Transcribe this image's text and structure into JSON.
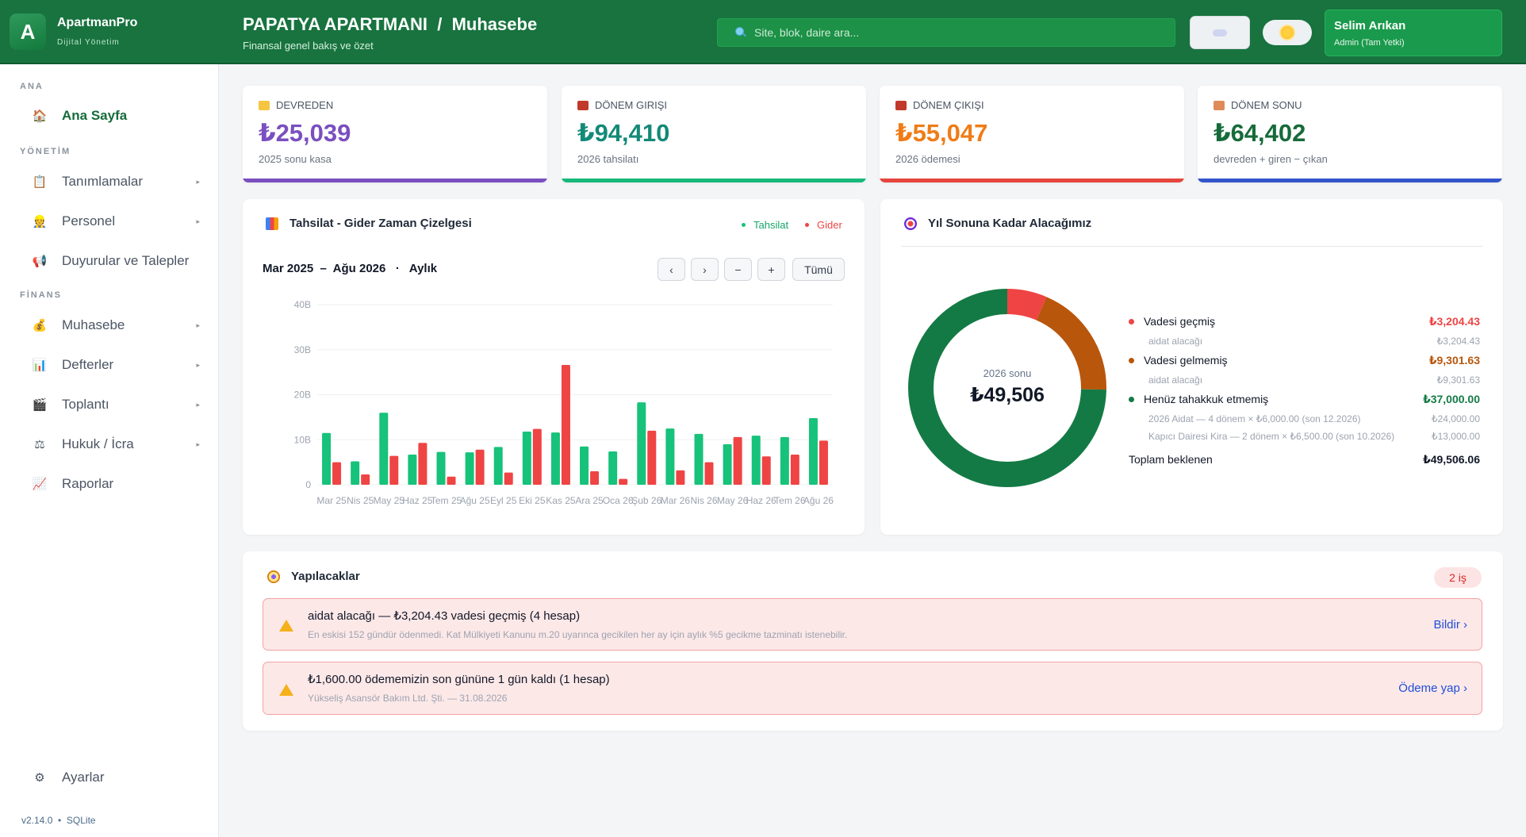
{
  "brand": {
    "name": "ApartmanPro",
    "subtitle": "Dijital Yönetim",
    "logo_letter": "A"
  },
  "header": {
    "title": "PAPATYA APARTMANI  /  Muhasebe",
    "subtitle": "Finansal genel bakış ve özet",
    "search_placeholder": "Site, blok, daire ara...",
    "user_name": "Selim Arıkan",
    "user_role": "Admin (Tam Yetki)"
  },
  "sidebar": {
    "sections": [
      {
        "title": "ANA"
      },
      {
        "title": "YÖNETİM"
      },
      {
        "title": "FİNANS"
      }
    ],
    "items": [
      {
        "label": "Ana Sayfa",
        "icon": "house-icon"
      },
      {
        "label": "Tanımlamalar",
        "icon": "clipboard-icon"
      },
      {
        "label": "Personel",
        "icon": "person-icon"
      },
      {
        "label": "Duyurular ve Talepler",
        "icon": "megaphone-icon"
      },
      {
        "label": "Muhasebe",
        "icon": "money-bag-icon"
      },
      {
        "label": "Defterler",
        "icon": "bar-chart-icon"
      },
      {
        "label": "Toplantı",
        "icon": "clapperboard-icon"
      },
      {
        "label": "Hukuk / İcra",
        "icon": "scales-icon"
      },
      {
        "label": "Raporlar",
        "icon": "line-chart-icon"
      }
    ],
    "settings_label": "Ayarlar",
    "version": "v2.14.0  •  SQLite"
  },
  "stats": [
    {
      "label": "DEVREDEN",
      "value": "₺25,039",
      "note": "2025 sonu kasa",
      "color": "#7a4fbf"
    },
    {
      "label": "DÖNEM GIRIŞI",
      "value": "₺94,410",
      "note": "2026 tahsilatı",
      "color": "#16a374"
    },
    {
      "label": "DÖNEM ÇIKIŞI",
      "value": "₺55,047",
      "note": "2026 ödemesi",
      "color": "#e5453d"
    },
    {
      "label": "DÖNEM SONU",
      "value": "₺64,402",
      "note": "devreden + giren − çıkan",
      "color": "#3355cc"
    }
  ],
  "timeline": {
    "title": "Tahsilat - Gider Zaman Çizelgesi",
    "legend_income": "Tahsilat",
    "legend_expense": "Gider",
    "range_label": "Mar 2025  –  Ağu 2026   ·   Aylık",
    "controls": {
      "prev": "‹",
      "next": "›",
      "zoom_out": "−",
      "zoom_in": "+",
      "all": "Tümü"
    }
  },
  "chart_data": {
    "type": "bar",
    "categories": [
      "Mar 25",
      "Nis 25",
      "May 25",
      "Haz 25",
      "Tem 25",
      "Ağu 25",
      "Eyl 25",
      "Eki 25",
      "Kas 25",
      "Ara 25",
      "Oca 26",
      "Şub 26",
      "Mar 26",
      "Nis 26",
      "May 26",
      "Haz 26",
      "Tem 26",
      "Ağu 26"
    ],
    "series": [
      {
        "name": "Tahsilat",
        "color": "#17c27a",
        "values": [
          11.5,
          5.2,
          16,
          6.7,
          7.3,
          7.2,
          8.4,
          11.8,
          11.6,
          8.5,
          7.4,
          18.3,
          12.5,
          11.3,
          9,
          10.9,
          10.6,
          14.8
        ]
      },
      {
        "name": "Gider",
        "color": "#ef4444",
        "values": [
          5,
          2.3,
          6.4,
          9.3,
          1.8,
          7.8,
          2.7,
          12.4,
          26.6,
          3,
          1.3,
          12,
          3.2,
          5,
          10.6,
          6.3,
          6.7,
          9.8
        ]
      }
    ],
    "y_ticks": [
      "0",
      "10B",
      "20B",
      "30B",
      "40B"
    ],
    "ylim": [
      0,
      40
    ],
    "grid": true
  },
  "receivables": {
    "title": "Yıl Sonuna Kadar Alacağımız",
    "center_label": "2026 sonu",
    "center_value": "₺49,506",
    "donut": [
      {
        "name": "Vadesi geçmiş",
        "value": 3204.43,
        "color": "#ef4444"
      },
      {
        "name": "Vadesi gelmemiş",
        "value": 9301.63,
        "color": "#b8560c"
      },
      {
        "name": "Henüz tahakkuk etmemiş",
        "value": 37000.0,
        "color": "#147a45"
      }
    ],
    "rows": [
      {
        "label": "Vadesi geçmiş",
        "amount": "₺3,204.43",
        "color": "#ef4444"
      },
      {
        "label": "aidat alacağı",
        "amount": "₺3,204.43"
      },
      {
        "label": "Vadesi gelmemiş",
        "amount": "₺9,301.63",
        "color": "#b8560c"
      },
      {
        "label": "aidat alacağı",
        "amount": "₺9,301.63"
      },
      {
        "label": "Henüz tahakkuk etmemiş",
        "amount": "₺37,000.00",
        "color": "#147a45"
      },
      {
        "label": "2026 Aidat — 4 dönem × ₺6,000.00 (son 12.2026)",
        "amount": "₺24,000.00"
      },
      {
        "label": "Kapıcı Dairesi Kira — 2 dönem × ₺6,500.00 (son 10.2026)",
        "amount": "₺13,000.00"
      }
    ],
    "total_label": "Toplam beklenen",
    "total_value": "₺49,506.06"
  },
  "todos": {
    "title": "Yapılacaklar",
    "badge": "2 iş",
    "items": [
      {
        "title": "aidat alacağı — ₺3,204.43 vadesi geçmiş (4 hesap)",
        "desc": "En eskisi 152 gündür ödenmedi. Kat Mülkiyeti Kanunu m.20 uyarınca gecikilen her ay için aylık %5 gecikme tazminatı istenebilir.",
        "action": "Bildir  ›"
      },
      {
        "title": "₺1,600.00 ödememizin son gününe 1 gün kaldı (1 hesap)",
        "desc": "Yükseliş Asansör Bakım Ltd. Şti. — 31.08.2026",
        "action": "Ödeme yap  ›"
      }
    ]
  }
}
